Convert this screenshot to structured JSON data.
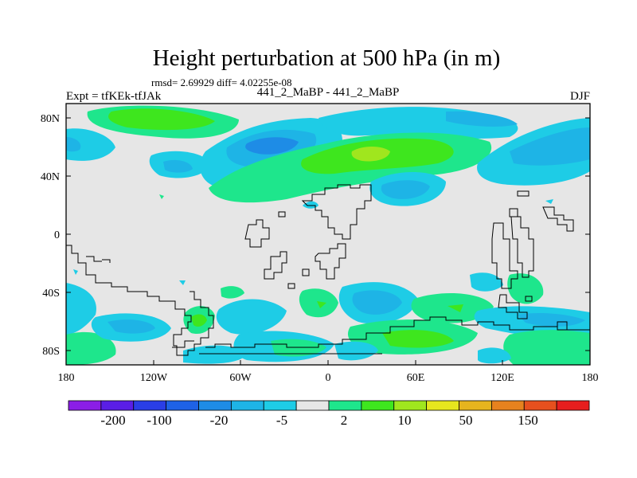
{
  "title": "Height perturbation at 500 hPa (in m)",
  "stats": "rmsd= 2.69929 diff= 4.02255e-08",
  "left_label": "Expt = tfKEk-tfJAk",
  "center_label": "441_2_MaBP - 441_2_MaBP",
  "right_label": "DJF",
  "lat_ticks": [
    "80N",
    "40N",
    "0",
    "40S",
    "80S"
  ],
  "lon_ticks": [
    "180",
    "120W",
    "60W",
    "0",
    "60E",
    "120E",
    "180"
  ],
  "colorbar": {
    "colors": [
      "#8b1ee6",
      "#5a1ee6",
      "#2a3ee6",
      "#1e62e6",
      "#1e8ce6",
      "#1eb4e6",
      "#1ecce6",
      "#e6e6e6",
      "#1ee68c",
      "#3ee61e",
      "#a0e61e",
      "#e6e61e",
      "#e6b41e",
      "#e6821e",
      "#e6501e",
      "#e61e1e"
    ],
    "labels": [
      "-200",
      "-100",
      "-20",
      "-5",
      "2",
      "10",
      "50",
      "150"
    ]
  },
  "colors": {
    "background": "#e6e6e6",
    "light_blue": "#1ecce6",
    "mid_blue": "#1eb4e6",
    "blue": "#1e8ce6",
    "green_teal": "#1ee68c",
    "green": "#3ee61e",
    "yellow_green": "#a0e61e"
  }
}
